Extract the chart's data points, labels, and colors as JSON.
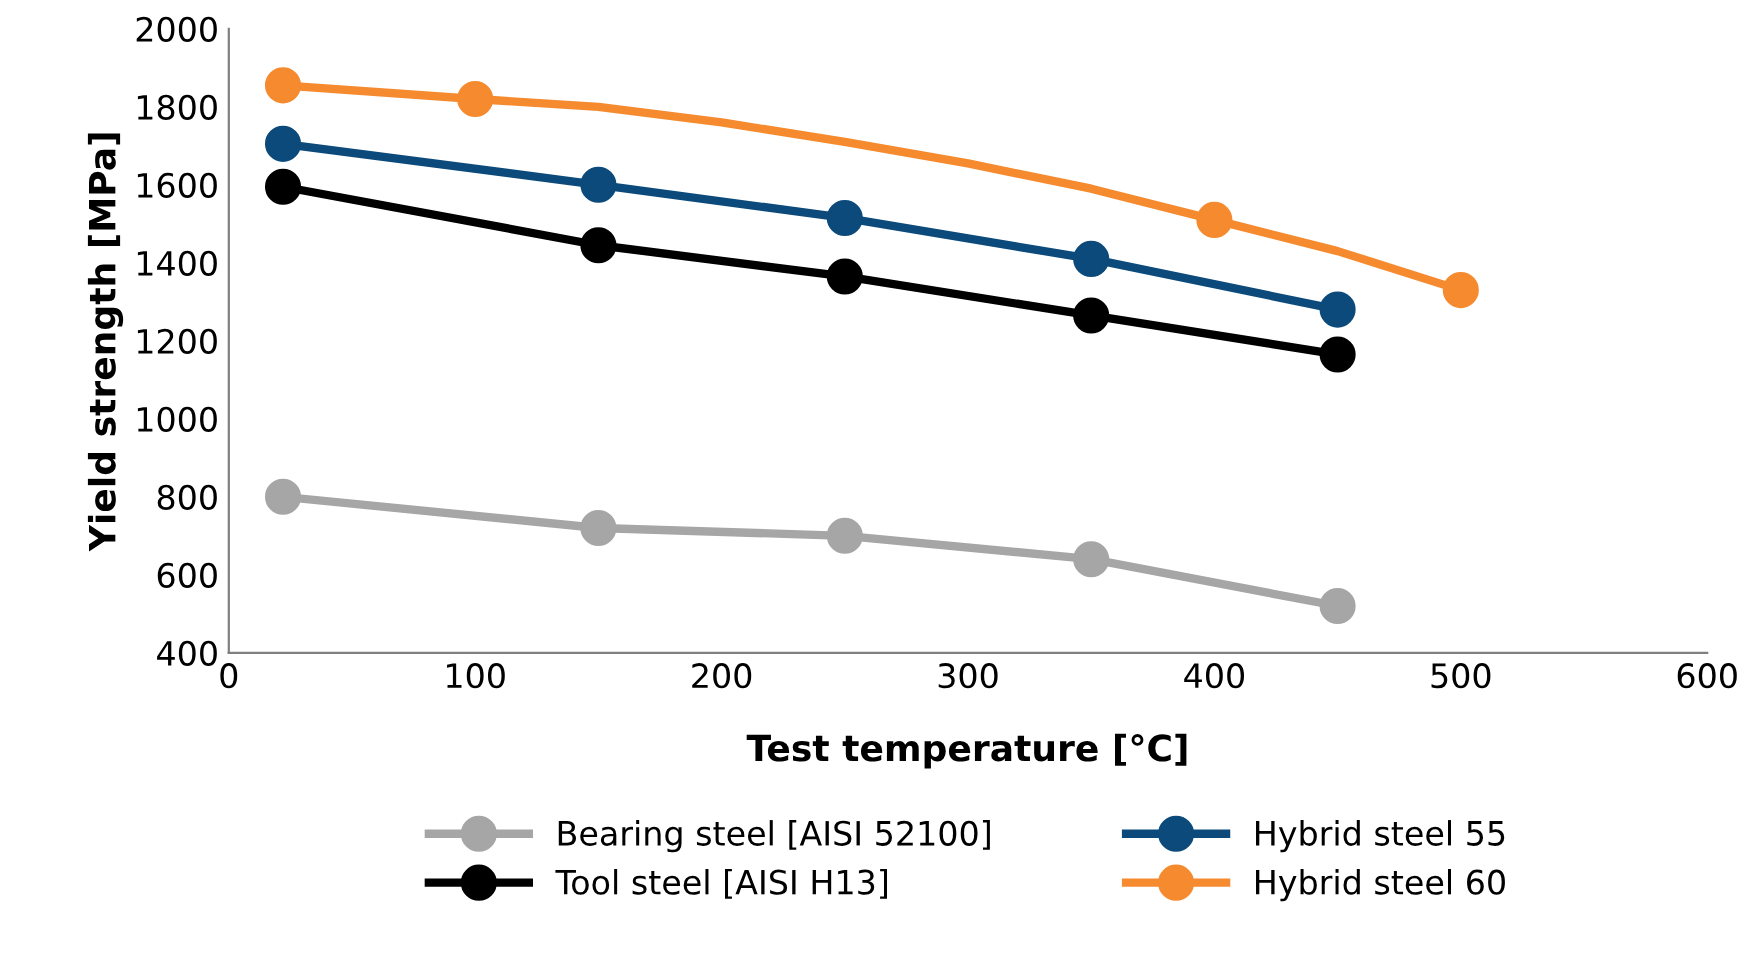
{
  "chart_data": {
    "type": "line",
    "xlabel": "Test temperature [°C]",
    "ylabel": "Yield strength [MPa]",
    "xlim": [
      0,
      600
    ],
    "xticks": [
      0,
      100,
      200,
      300,
      400,
      500,
      600
    ],
    "ylim": [
      400,
      2000
    ],
    "yticks": [
      400,
      600,
      800,
      1000,
      1200,
      1400,
      1600,
      1800,
      2000
    ],
    "grid": false,
    "legend": "bottom",
    "marker": "circle",
    "line_style": "solid",
    "series": [
      {
        "name": "Bearing steel [AISI 52100]",
        "color": "#a6a6a6",
        "x": [
          22,
          150,
          250,
          350,
          450
        ],
        "values": [
          800,
          720,
          700,
          640,
          520
        ]
      },
      {
        "name": "Tool steel [AISI H13]",
        "color": "#000000",
        "x": [
          22,
          150,
          250,
          350,
          450
        ],
        "values": [
          1595,
          1445,
          1365,
          1265,
          1165
        ]
      },
      {
        "name": "Hybrid steel 55",
        "color": "#0b4a7a",
        "x": [
          22,
          150,
          250,
          350,
          450
        ],
        "values": [
          1705,
          1600,
          1515,
          1410,
          1280
        ]
      },
      {
        "name": "Hybrid steel 60",
        "color": "#f58a2e",
        "marker": "none",
        "x": [
          22,
          100,
          150,
          200,
          250,
          300,
          350,
          400,
          450,
          500
        ],
        "values": [
          1855,
          1820,
          1800,
          1760,
          1710,
          1655,
          1590,
          1510,
          1430,
          1330
        ]
      },
      {
        "type": "scatter",
        "color": "#f58a2e",
        "x": [
          22,
          100,
          400,
          500
        ],
        "values": [
          1855,
          1820,
          1510,
          1330
        ]
      }
    ]
  }
}
